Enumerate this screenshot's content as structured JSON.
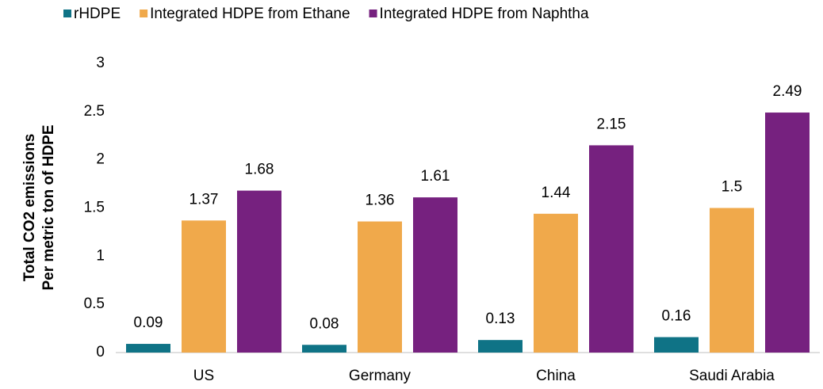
{
  "chart_data": {
    "type": "bar",
    "y_label": [
      "Total CO2 emissions",
      "Per metric ton of HDPE"
    ],
    "categories": [
      "US",
      "Germany",
      "China",
      "Saudi Arabia"
    ],
    "series": [
      {
        "name": "rHDPE",
        "color": "#0f7386",
        "values": [
          0.09,
          0.08,
          0.13,
          0.16
        ]
      },
      {
        "name": "Integrated HDPE from Ethane",
        "color": "#f0a94b",
        "values": [
          1.37,
          1.36,
          1.44,
          1.5
        ]
      },
      {
        "name": "Integrated HDPE from Naphtha",
        "color": "#76217f",
        "values": [
          1.68,
          1.61,
          2.15,
          2.49
        ]
      }
    ],
    "ylim": [
      0,
      3
    ],
    "yticks": [
      0,
      0.5,
      1,
      1.5,
      2,
      2.5,
      3
    ],
    "grid": false,
    "legend": "top"
  }
}
